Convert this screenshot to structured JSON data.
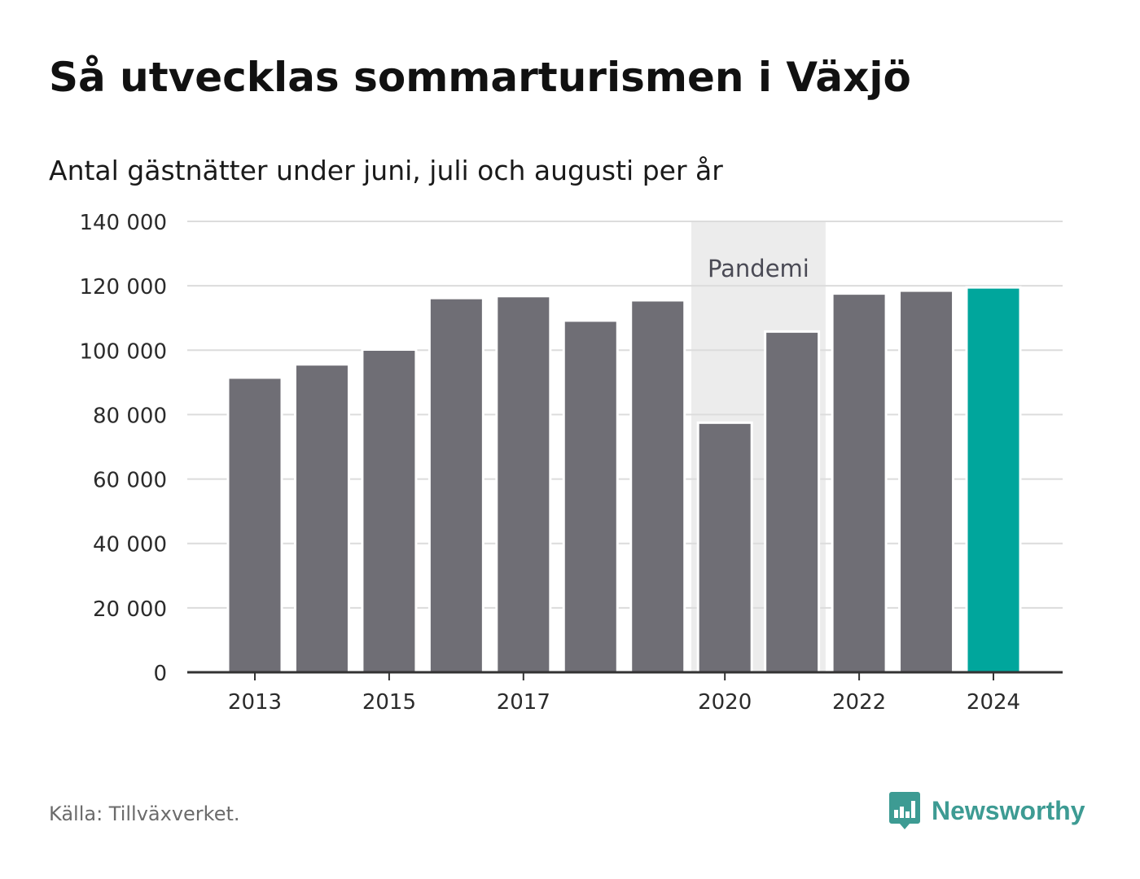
{
  "header": {
    "title": "Så utvecklas sommarturismen i Växjö",
    "subtitle": "Antal gästnätter under juni, juli och augusti per år"
  },
  "footer": {
    "source": "Källa: Tillväxverket.",
    "brand": "Newsworthy",
    "brand_color": "#3d9b93",
    "brand_icon": "bar-chart-speech-bubble-icon"
  },
  "chart_data": {
    "type": "bar",
    "title": "Så utvecklas sommarturismen i Växjö",
    "subtitle": "Antal gästnätter under juni, juli och augusti per år",
    "xlabel": "",
    "ylabel": "",
    "categories": [
      "2013",
      "2014",
      "2015",
      "2016",
      "2017",
      "2018",
      "2019",
      "2020",
      "2021",
      "2022",
      "2023",
      "2024"
    ],
    "values": [
      91500,
      95600,
      100200,
      116200,
      116800,
      109200,
      115500,
      77500,
      105800,
      117600,
      118500,
      119500
    ],
    "x_tick_labels": [
      "2013",
      "2015",
      "2017",
      "2020",
      "2022",
      "2024"
    ],
    "ylim": [
      0,
      140000
    ],
    "y_ticks": [
      0,
      20000,
      40000,
      60000,
      80000,
      100000,
      120000,
      140000
    ],
    "y_tick_labels": [
      "0",
      "20 000",
      "40 000",
      "60 000",
      "80 000",
      "100 000",
      "120 000",
      "140 000"
    ],
    "grid": true,
    "bar_color": "#6f6e75",
    "highlight_color": "#00a69c",
    "highlight_category": "2024",
    "annotation": {
      "label": "Pandemi",
      "from": "2020",
      "to": "2021",
      "shade_color": "#ececec"
    }
  }
}
